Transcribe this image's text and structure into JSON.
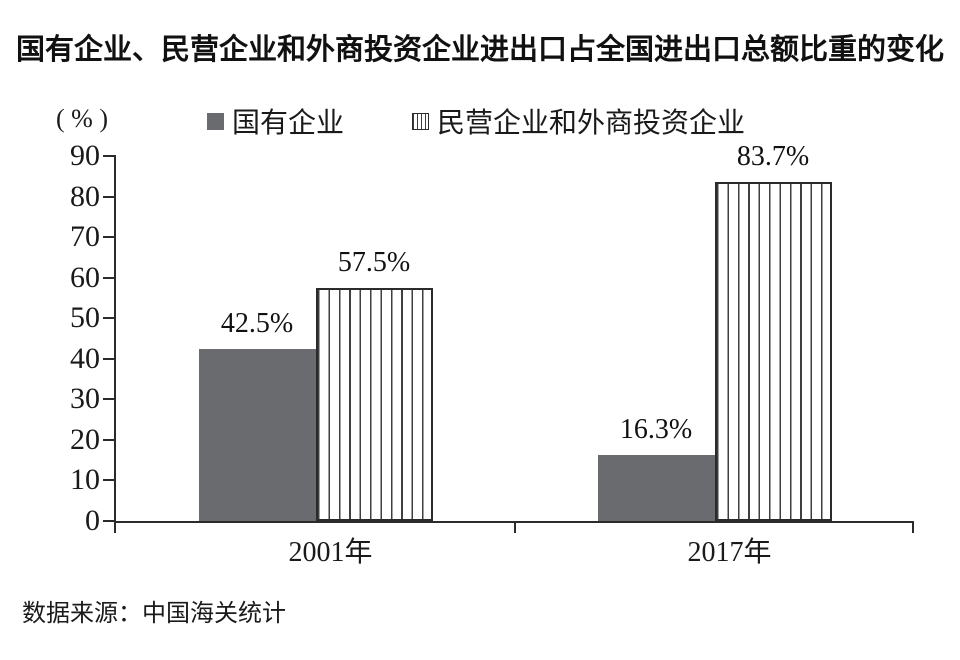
{
  "chart_data": {
    "type": "bar",
    "title": "国有企业、民营企业和外商投资企业进出口占全国进出口总额比重的变化",
    "axis_unit_label": "( % )",
    "categories": [
      "2001年",
      "2017年"
    ],
    "series": [
      {
        "name": "国有企业",
        "style": "solid",
        "color": "#6a6b6f",
        "values": [
          42.5,
          16.3
        ]
      },
      {
        "name": "民营企业和外商投资企业",
        "style": "striped-vertical",
        "color": "#ffffff",
        "stripe_color": "#3f3f3f",
        "values": [
          57.5,
          83.7
        ]
      }
    ],
    "value_labels": [
      [
        "42.5%",
        "16.3%"
      ],
      [
        "57.5%",
        "83.7%"
      ]
    ],
    "ylabel": "",
    "xlabel": "",
    "ylim": [
      0,
      90
    ],
    "ytick_step": 10,
    "yticks": [
      0,
      10,
      20,
      30,
      40,
      50,
      60,
      70,
      80,
      90
    ],
    "grid": false,
    "legend_position": "top",
    "source": "数据来源：中国海关统计"
  },
  "colors": {
    "solid_bar": "#6a6b6f",
    "stripe_line": "#3f3f3f",
    "axis": "#2b2b2b",
    "text": "#111111",
    "background": "#ffffff"
  }
}
